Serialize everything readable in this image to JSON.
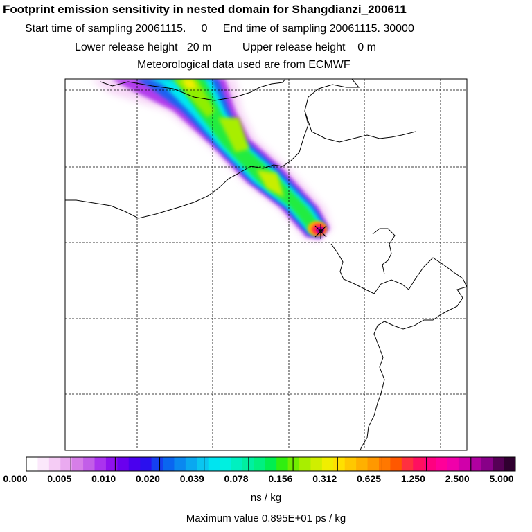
{
  "title": "Footprint emission sensitivity in nested domain for Shangdianzi_200611",
  "line_start": "Start time of sampling 20061115.     0",
  "line_end": "End time of sampling 20061115. 30000",
  "line_lower": "Lower release height   20 m",
  "line_upper": "Upper release height    0 m",
  "line_met": "Meteorological data used are from ECMWF",
  "colorbar": {
    "labels": [
      "0.000",
      "0.005",
      "0.010",
      "0.020",
      "0.039",
      "0.078",
      "0.156",
      "0.312",
      "0.625",
      "1.250",
      "2.500",
      "5.000"
    ],
    "colors": [
      "#ffffff",
      "#fbe8fb",
      "#f5ccf5",
      "#eaaaf0",
      "#d67ee8",
      "#c25ee8",
      "#aa33ee",
      "#8f11ee",
      "#6a00ee",
      "#4a00ee",
      "#2a10ee",
      "#1540f0",
      "#0a66f0",
      "#0a88f0",
      "#0aa8f0",
      "#0ac6f0",
      "#00e4f0",
      "#00f0e0",
      "#00f0c0",
      "#00f0a0",
      "#00f080",
      "#00ee50",
      "#30ee10",
      "#70ee00",
      "#a8ee00",
      "#d0ee00",
      "#f0ee00",
      "#ffe000",
      "#ffc800",
      "#ffb000",
      "#ff9800",
      "#ff7800",
      "#ff5800",
      "#ff3040",
      "#ff1060",
      "#ff0080",
      "#ff0099",
      "#f000aa",
      "#d000aa",
      "#b000a0",
      "#880088",
      "#550055",
      "#300030"
    ]
  },
  "units": "ns / kg",
  "max_value": "Maximum value  0.895E+01 ps / kg"
}
